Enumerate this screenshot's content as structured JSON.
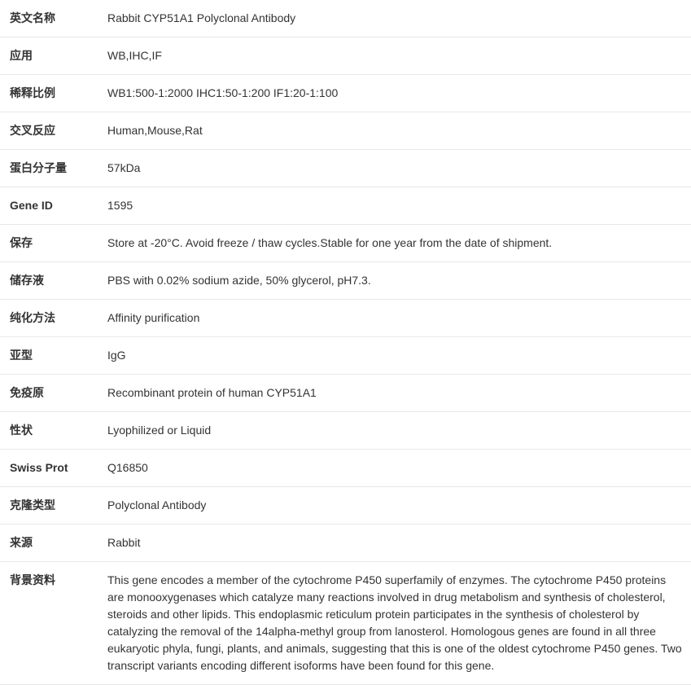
{
  "rows": [
    {
      "label": "英文名称",
      "value": "Rabbit CYP51A1 Polyclonal Antibody"
    },
    {
      "label": "应用",
      "value": "WB,IHC,IF"
    },
    {
      "label": "稀释比例",
      "value": "WB1:500-1:2000 IHC1:50-1:200 IF1:20-1:100"
    },
    {
      "label": "交叉反应",
      "value": "Human,Mouse,Rat"
    },
    {
      "label": "蛋白分子量",
      "value": "57kDa"
    },
    {
      "label": "Gene ID",
      "value": "1595"
    },
    {
      "label": "保存",
      "value": "Store at -20°C. Avoid freeze / thaw cycles.Stable for one year from the date of shipment."
    },
    {
      "label": "储存液",
      "value": "PBS with 0.02% sodium azide, 50% glycerol, pH7.3."
    },
    {
      "label": "纯化方法",
      "value": "Affinity purification"
    },
    {
      "label": "亚型",
      "value": "IgG"
    },
    {
      "label": "免疫原",
      "value": "Recombinant protein of human CYP51A1"
    },
    {
      "label": "性状",
      "value": "Lyophilized or Liquid"
    },
    {
      "label": "Swiss Prot",
      "value": "Q16850"
    },
    {
      "label": "克隆类型",
      "value": "Polyclonal Antibody"
    },
    {
      "label": "来源",
      "value": "Rabbit"
    },
    {
      "label": "背景资料",
      "value": "This gene encodes a member of the cytochrome P450 superfamily of enzymes. The cytochrome P450 proteins are monooxygenases which catalyze many reactions involved in drug metabolism and synthesis of cholesterol, steroids and other lipids. This endoplasmic reticulum protein participates in the synthesis of cholesterol by catalyzing the removal of the 14alpha-methyl group from lanosterol. Homologous genes are found in all three eukaryotic phyla, fungi, plants, and animals, suggesting that this is one of the oldest cytochrome P450 genes. Two transcript variants encoding different isoforms have been found for this gene."
    }
  ],
  "styles": {
    "border_color": "#e8e8e8",
    "text_color": "#333333",
    "font_size": 14,
    "label_width": 120,
    "row_padding": "12px 8px 12px 12px",
    "background_color": "#ffffff"
  }
}
